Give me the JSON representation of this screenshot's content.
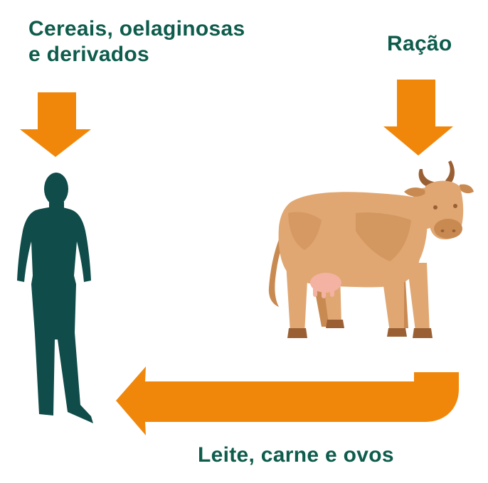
{
  "labels": {
    "cereals_line1": "Cereais, oelaginosas",
    "cereals_line2": "e derivados",
    "feed": "Ração",
    "products": "Leite, carne e ovos"
  },
  "colors": {
    "text": "#0e5c4c",
    "arrow": "#f0870a",
    "person": "#0f4c4a",
    "cow_body": "#e0a772",
    "cow_shade": "#c98a52",
    "cow_dark": "#9a6034",
    "udder": "#f3b2a2"
  },
  "icons": {
    "cereals_arrow": "arrow-down-icon",
    "feed_arrow": "arrow-down-icon",
    "return_arrow": "arrow-left-curved-icon",
    "person": "person-silhouette-icon",
    "cow": "cow-illustration-icon"
  }
}
